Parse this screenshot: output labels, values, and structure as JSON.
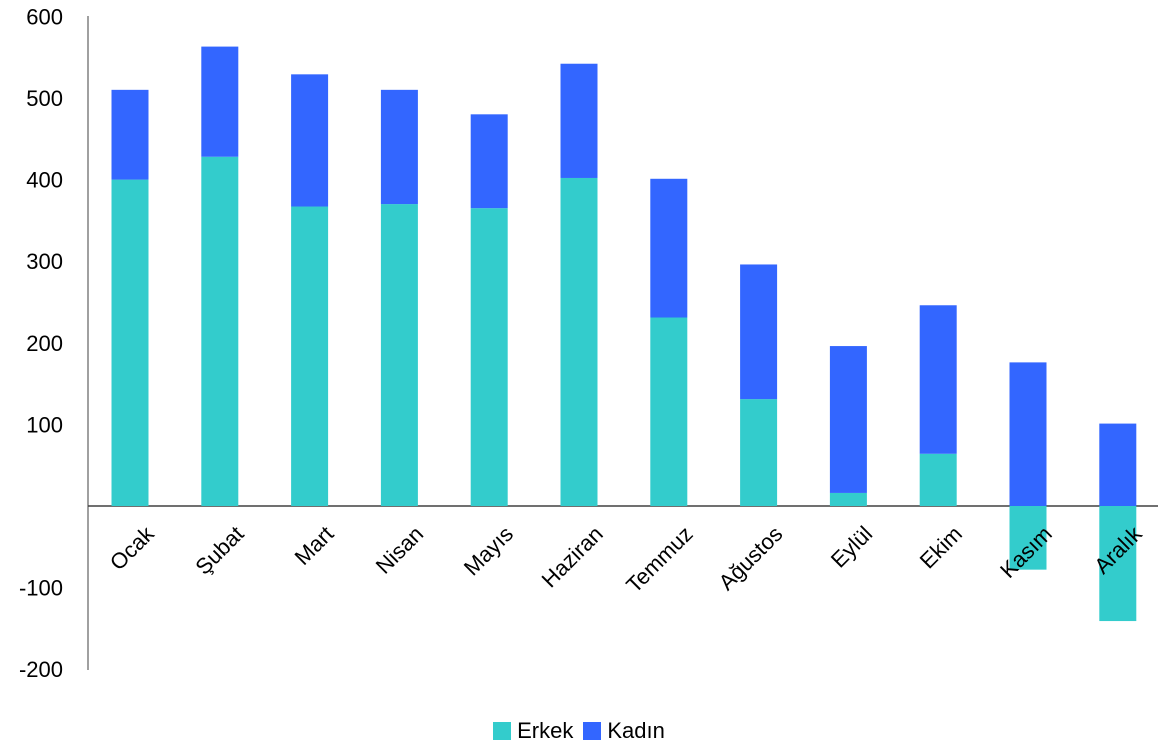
{
  "chart_data": {
    "type": "bar",
    "stacked": true,
    "categories": [
      "Ocak",
      "Şubat",
      "Mart",
      "Nisan",
      "Mayıs",
      "Haziran",
      "Temmuz",
      "Ağustos",
      "Eylül",
      "Ekim",
      "Kasım",
      "Aralık"
    ],
    "series": [
      {
        "name": "Erkek",
        "color": "#33CCCC",
        "values": [
          400,
          428,
          367,
          370,
          365,
          402,
          231,
          131,
          16,
          64,
          -78,
          -141
        ]
      },
      {
        "name": "Kadın",
        "color": "#3366FF",
        "values": [
          110,
          135,
          162,
          140,
          115,
          140,
          170,
          165,
          180,
          182,
          176,
          101
        ]
      }
    ],
    "yticks": [
      "600",
      "500",
      "400",
      "300",
      "200",
      "100",
      "-100",
      "-200"
    ],
    "ylim": [
      -200,
      600
    ],
    "grid": false,
    "legend": "bottom",
    "title": "",
    "xlabel": "",
    "ylabel": ""
  }
}
